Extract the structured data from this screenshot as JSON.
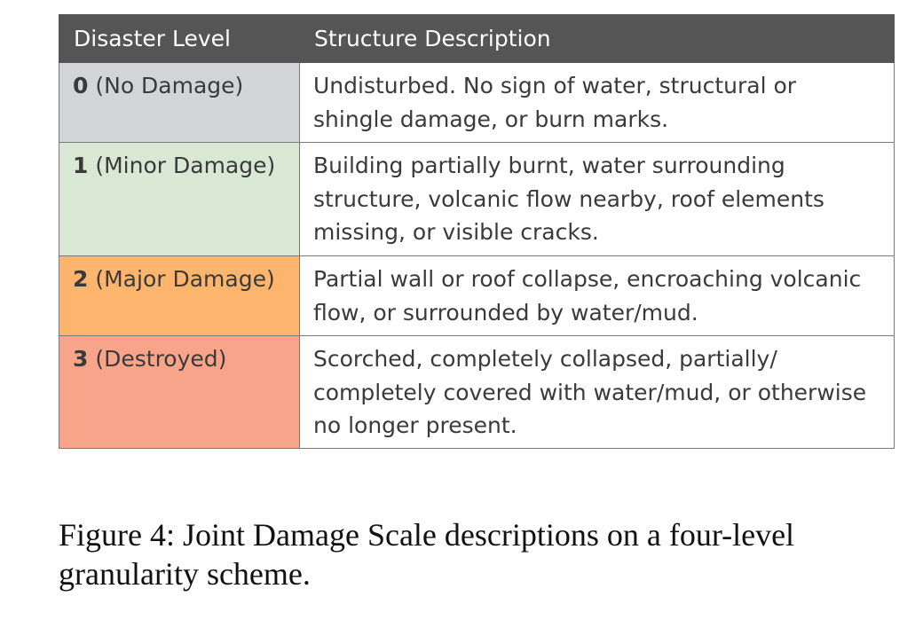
{
  "table": {
    "headers": [
      "Disaster Level",
      "Structure Description"
    ],
    "rows": [
      {
        "level": "0",
        "label": "(No Damage)",
        "color": "#d3d4d8",
        "description": "Undisturbed. No sign of water, structural or shingle damage, or burn marks."
      },
      {
        "level": "1",
        "label": "(Minor Damage)",
        "color": "#d8e8d4",
        "description": "Building partially burnt, water surrounding structure, volcanic flow nearby, roof elements missing, or visible cracks."
      },
      {
        "level": "2",
        "label": "(Major Damage)",
        "color": "#fdb56d",
        "description": "Partial wall or roof collapse, encroaching volcanic flow, or surrounded by water/mud."
      },
      {
        "level": "3",
        "label": "(Destroyed)",
        "color": "#f8a48a",
        "description": "Scorched, completely collapsed, partially/ completely covered with water/mud, or otherwise no longer present."
      }
    ]
  },
  "caption": "Figure 4: Joint Damage Scale descriptions on a four-level granularity scheme."
}
